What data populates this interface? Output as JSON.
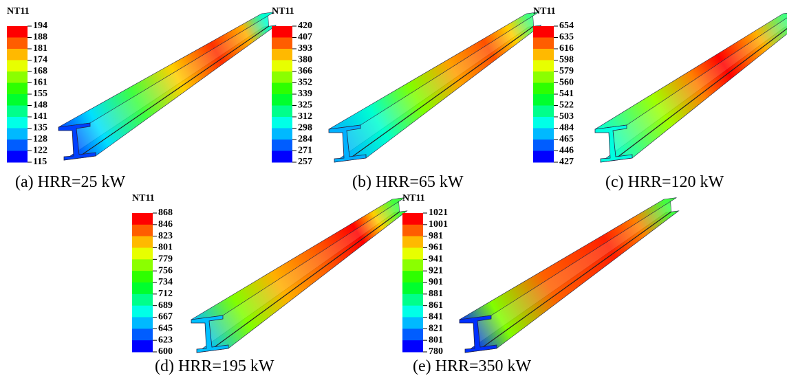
{
  "panels": [
    {
      "legend_title": "NT11",
      "legend_values": [
        194,
        188,
        181,
        174,
        168,
        161,
        155,
        148,
        141,
        135,
        128,
        122,
        115
      ],
      "caption": "(a) HRR=25 kW"
    },
    {
      "legend_title": "NT11",
      "legend_values": [
        420,
        407,
        393,
        380,
        366,
        352,
        339,
        325,
        312,
        298,
        284,
        271,
        257
      ],
      "caption": "(b) HRR=65 kW"
    },
    {
      "legend_title": "NT11",
      "legend_values": [
        654,
        635,
        616,
        598,
        579,
        560,
        541,
        522,
        503,
        484,
        465,
        446,
        427
      ],
      "caption": "(c) HRR=120 kW"
    },
    {
      "legend_title": "NT11",
      "legend_values": [
        868,
        846,
        823,
        801,
        779,
        756,
        734,
        712,
        689,
        667,
        645,
        623,
        600
      ],
      "caption": "(d) HRR=195 kW"
    },
    {
      "legend_title": "NT11",
      "legend_values": [
        1021,
        1001,
        981,
        961,
        941,
        921,
        901,
        881,
        861,
        841,
        821,
        801,
        780
      ],
      "caption": "(e) HRR=350 kW"
    }
  ]
}
